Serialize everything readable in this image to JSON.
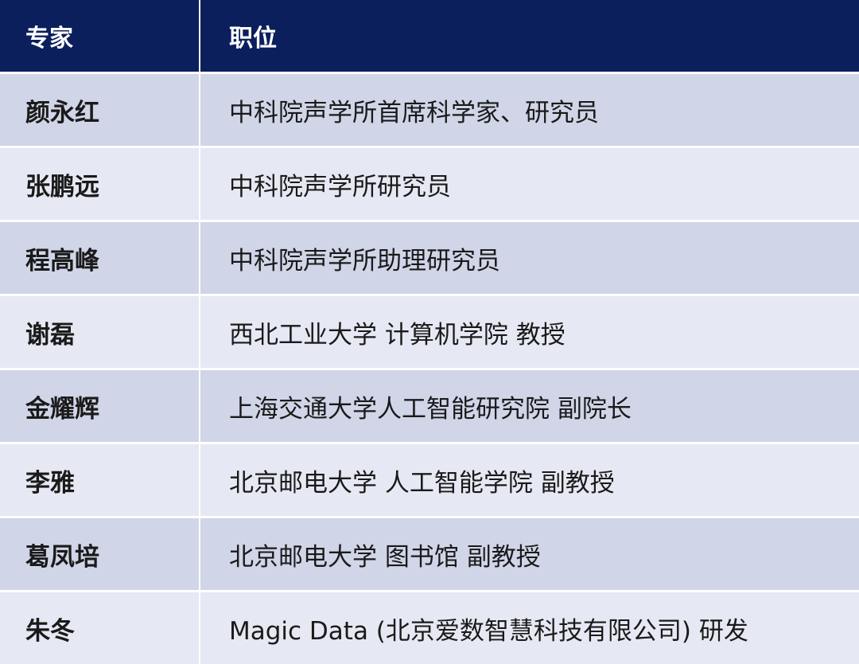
{
  "table": {
    "header": [
      "专家",
      "职位"
    ],
    "rows": [
      [
        "颜永红",
        "中科院声学所首席科学家、研究员"
      ],
      [
        "张鹏远",
        "中科院声学所研究员"
      ],
      [
        "程高峰",
        "中科院声学所助理研究员"
      ],
      [
        "谢磊",
        "西北工业大学 计算机学院 教授"
      ],
      [
        "金耀辉",
        "上海交通大学人工智能研究院 副院长"
      ],
      [
        "李雅",
        "北京邮电大学 人工智能学院 副教授"
      ],
      [
        "葛凤培",
        "北京邮电大学 图书馆 副教授"
      ],
      [
        "朱冬",
        "Magic Data (北京爱数智慧科技有限公司) 研发"
      ]
    ]
  }
}
